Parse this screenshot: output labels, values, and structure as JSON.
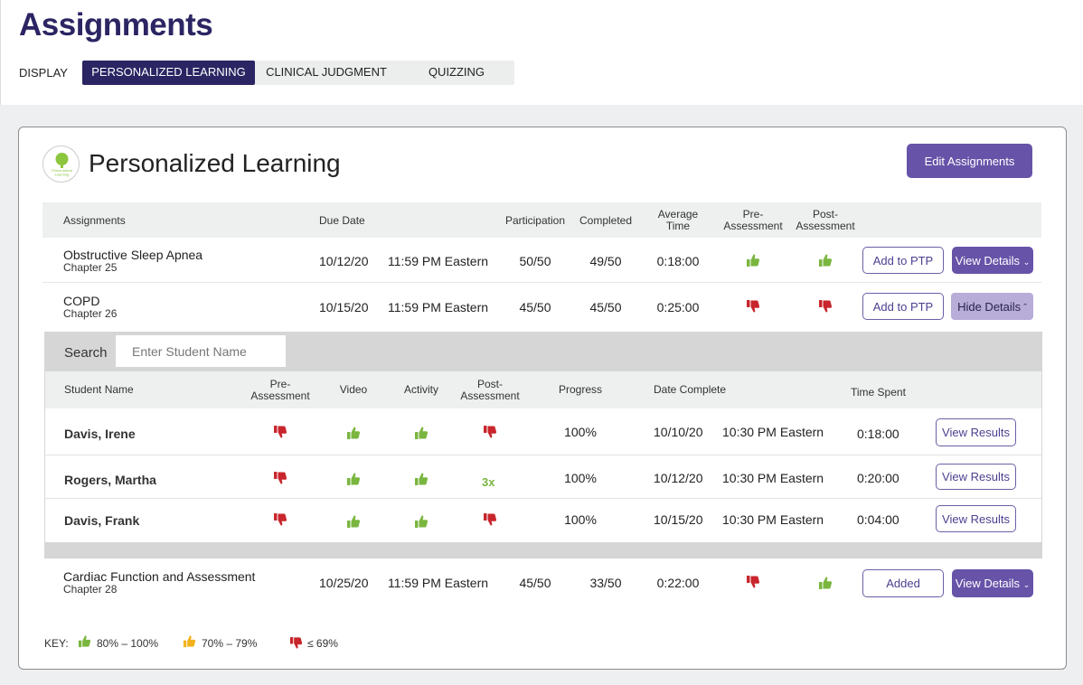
{
  "page": {
    "title": "Assignments",
    "display_label": "DISPLAY"
  },
  "tabs": [
    {
      "label": "PERSONALIZED LEARNING",
      "active": true
    },
    {
      "label": "CLINICAL JUDGMENT",
      "active": false
    },
    {
      "label": "QUIZZING",
      "active": false
    }
  ],
  "card": {
    "title": "Personalized Learning",
    "logo_text": "Personalized Learning",
    "edit_button": "Edit Assignments"
  },
  "colors": {
    "brand": "#2b2563",
    "accent": "#6753a8",
    "good": "#7ab63f",
    "warn": "#f2b21b",
    "bad": "#c8262c"
  },
  "columns": {
    "assignments": "Assignments",
    "due_date": "Due Date",
    "participation": "Participation",
    "completed": "Completed",
    "average_time_1": "Average",
    "average_time_2": "Time",
    "pre_1": "Pre-",
    "pre_2": "Assessment",
    "post_1": "Post-",
    "post_2": "Assessment"
  },
  "assignments": [
    {
      "name": "Obstructive Sleep Apnea",
      "chapter": "Chapter 25",
      "date": "10/12/20",
      "time": "11:59 PM Eastern",
      "participation": "50/50",
      "completed": "49/50",
      "avg_time": "0:18:00",
      "pre": "thumbs-up-icon",
      "post": "thumbs-up-icon",
      "ptp_button": "Add to PTP",
      "details_button": "View Details"
    },
    {
      "name": "COPD",
      "chapter": "Chapter 26",
      "date": "10/15/20",
      "time": "11:59 PM Eastern",
      "participation": "45/50",
      "completed": "45/50",
      "avg_time": "0:25:00",
      "pre": "thumbs-down-icon",
      "post": "thumbs-down-icon",
      "ptp_button": "Add to PTP",
      "details_button": "Hide Details"
    },
    {
      "name": "Cardiac Function and Assessment",
      "chapter": "Chapter 28",
      "date": "10/25/20",
      "time": "11:59 PM Eastern",
      "participation": "45/50",
      "completed": "33/50",
      "avg_time": "0:22:00",
      "pre": "thumbs-down-icon",
      "post": "thumbs-up-icon",
      "ptp_button": "Added",
      "details_button": "View Details"
    }
  ],
  "details": {
    "search_label": "Search",
    "search_placeholder": "Enter Student Name",
    "columns": {
      "student_name": "Student Name",
      "pre_1": "Pre-",
      "pre_2": "Assessment",
      "video": "Video",
      "activity": "Activity",
      "post_1": "Post-",
      "post_2": "Assessment",
      "progress": "Progress",
      "date_complete": "Date Complete",
      "time_spent": "Time Spent"
    },
    "students": [
      {
        "name": "Davis, Irene",
        "pre": "thumbs-down-icon",
        "video": "thumbs-up-icon",
        "activity": "thumbs-up-icon",
        "post": "thumbs-down-icon",
        "post_text": "",
        "progress": "100%",
        "date": "10/10/20",
        "time": "10:30 PM Eastern",
        "spent": "0:18:00",
        "button": "View Results"
      },
      {
        "name": "Rogers, Martha",
        "pre": "thumbs-down-icon",
        "video": "thumbs-up-icon",
        "activity": "thumbs-up-icon",
        "post": "",
        "post_text": "3x",
        "progress": "100%",
        "date": "10/12/20",
        "time": "10:30 PM Eastern",
        "spent": "0:20:00",
        "button": "View Results"
      },
      {
        "name": "Davis, Frank",
        "pre": "thumbs-down-icon",
        "video": "thumbs-up-icon",
        "activity": "thumbs-up-icon",
        "post": "thumbs-down-icon",
        "post_text": "",
        "progress": "100%",
        "date": "10/15/20",
        "time": "10:30 PM Eastern",
        "spent": "0:04:00",
        "button": "View Results"
      }
    ]
  },
  "key": {
    "label": "KEY:",
    "good": "80% – 100%",
    "warn": "70% – 79%",
    "bad": "≤ 69%"
  }
}
